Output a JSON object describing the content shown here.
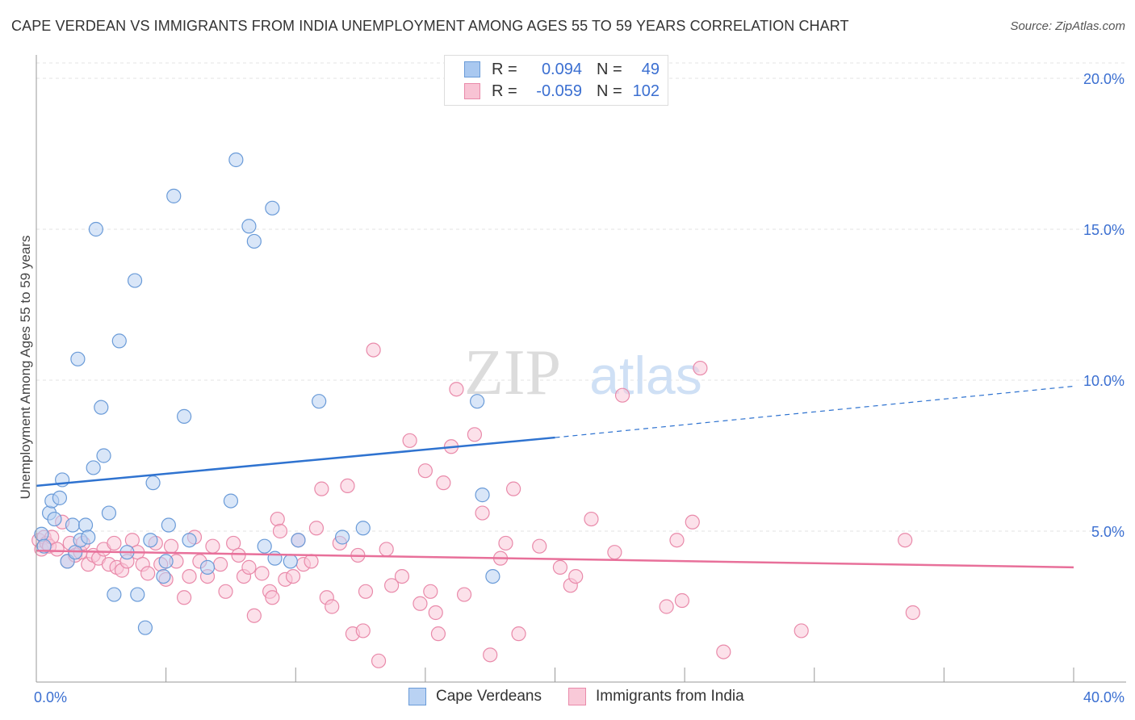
{
  "title": "CAPE VERDEAN VS IMMIGRANTS FROM INDIA UNEMPLOYMENT AMONG AGES 55 TO 59 YEARS CORRELATION CHART",
  "source": "Source: ZipAtlas.com",
  "watermark": {
    "zip": "ZIP",
    "atlas": "atlas"
  },
  "legend_top": [
    {
      "r_label": "R =",
      "r_value": "0.094",
      "n_label": "N =",
      "n_value": "49",
      "color": "#a9c8f0",
      "border": "#6a9bd8"
    },
    {
      "r_label": "R =",
      "r_value": "-0.059",
      "n_label": "N =",
      "n_value": "102",
      "color": "#f8c3d4",
      "border": "#e98aaa"
    }
  ],
  "chart_data": {
    "type": "scatter",
    "title": "CAPE VERDEAN VS IMMIGRANTS FROM INDIA UNEMPLOYMENT AMONG AGES 55 TO 59 YEARS CORRELATION CHART",
    "xlabel": "",
    "ylabel": "Unemployment Among Ages 55 to 59 years",
    "xlim": [
      0,
      40
    ],
    "ylim": [
      0,
      20
    ],
    "x_tick_labels": [
      "0.0%",
      "40.0%"
    ],
    "y_ticks": [
      5,
      10,
      15,
      20
    ],
    "y_tick_labels": [
      "5.0%",
      "10.0%",
      "15.0%",
      "20.0%"
    ],
    "grid": true,
    "legend": "bottom",
    "series": [
      {
        "name": "Cape Verdeans",
        "color": "#6a9bd8",
        "fill": "#b9d2f3",
        "trend": {
          "x0": 0,
          "y0": 6.5,
          "x1": 20,
          "y1": 8.1,
          "dash_to": 40,
          "dash_y": 9.8,
          "color": "#2f73d0"
        },
        "points": [
          [
            0.2,
            4.9
          ],
          [
            0.3,
            4.5
          ],
          [
            0.5,
            5.6
          ],
          [
            0.6,
            6.0
          ],
          [
            0.7,
            5.4
          ],
          [
            0.9,
            6.1
          ],
          [
            1.0,
            6.7
          ],
          [
            1.2,
            4.0
          ],
          [
            1.4,
            5.2
          ],
          [
            1.5,
            4.3
          ],
          [
            1.6,
            10.7
          ],
          [
            1.7,
            4.7
          ],
          [
            1.9,
            5.2
          ],
          [
            2.0,
            4.8
          ],
          [
            2.2,
            7.1
          ],
          [
            2.3,
            15.0
          ],
          [
            2.5,
            9.1
          ],
          [
            2.6,
            7.5
          ],
          [
            2.8,
            5.6
          ],
          [
            3.0,
            2.9
          ],
          [
            3.2,
            11.3
          ],
          [
            3.5,
            4.3
          ],
          [
            3.8,
            13.3
          ],
          [
            3.9,
            2.9
          ],
          [
            4.2,
            1.8
          ],
          [
            4.4,
            4.7
          ],
          [
            4.5,
            6.6
          ],
          [
            4.9,
            3.5
          ],
          [
            5.0,
            4.0
          ],
          [
            5.1,
            5.2
          ],
          [
            5.3,
            16.1
          ],
          [
            5.7,
            8.8
          ],
          [
            5.9,
            4.7
          ],
          [
            6.6,
            3.8
          ],
          [
            7.5,
            6.0
          ],
          [
            7.7,
            17.3
          ],
          [
            8.2,
            15.1
          ],
          [
            8.4,
            14.6
          ],
          [
            8.8,
            4.5
          ],
          [
            9.2,
            4.1
          ],
          [
            9.1,
            15.7
          ],
          [
            9.8,
            4.0
          ],
          [
            10.1,
            4.7
          ],
          [
            10.9,
            9.3
          ],
          [
            11.8,
            4.8
          ],
          [
            12.6,
            5.1
          ],
          [
            17.0,
            9.3
          ],
          [
            17.2,
            6.2
          ],
          [
            17.6,
            3.5
          ]
        ]
      },
      {
        "name": "Immigrants from India",
        "color": "#e98aaa",
        "fill": "#f9c9d8",
        "trend": {
          "x0": 0,
          "y0": 4.35,
          "x1": 40,
          "y1": 3.8,
          "color": "#e8709a"
        },
        "points": [
          [
            0.1,
            4.7
          ],
          [
            0.2,
            4.4
          ],
          [
            0.3,
            4.8
          ],
          [
            0.4,
            4.6
          ],
          [
            0.5,
            4.5
          ],
          [
            0.6,
            4.8
          ],
          [
            0.8,
            4.4
          ],
          [
            1.0,
            5.3
          ],
          [
            1.2,
            4.0
          ],
          [
            1.3,
            4.6
          ],
          [
            1.5,
            4.2
          ],
          [
            1.7,
            4.3
          ],
          [
            1.8,
            4.6
          ],
          [
            2.0,
            3.9
          ],
          [
            2.2,
            4.2
          ],
          [
            2.4,
            4.1
          ],
          [
            2.6,
            4.4
          ],
          [
            2.8,
            3.9
          ],
          [
            3.0,
            4.6
          ],
          [
            3.1,
            3.8
          ],
          [
            3.3,
            3.7
          ],
          [
            3.5,
            4.0
          ],
          [
            3.7,
            4.7
          ],
          [
            3.9,
            4.3
          ],
          [
            4.1,
            3.9
          ],
          [
            4.3,
            3.6
          ],
          [
            4.6,
            4.6
          ],
          [
            4.8,
            3.9
          ],
          [
            5.0,
            3.4
          ],
          [
            5.2,
            4.5
          ],
          [
            5.4,
            4.0
          ],
          [
            5.7,
            2.8
          ],
          [
            5.9,
            3.5
          ],
          [
            6.1,
            4.8
          ],
          [
            6.3,
            4.0
          ],
          [
            6.6,
            3.5
          ],
          [
            6.8,
            4.5
          ],
          [
            7.1,
            3.9
          ],
          [
            7.3,
            3.0
          ],
          [
            7.6,
            4.6
          ],
          [
            7.8,
            4.2
          ],
          [
            8.0,
            3.5
          ],
          [
            8.2,
            3.8
          ],
          [
            8.4,
            2.2
          ],
          [
            8.7,
            3.6
          ],
          [
            9.0,
            3.0
          ],
          [
            9.1,
            2.8
          ],
          [
            9.3,
            5.4
          ],
          [
            9.4,
            5.0
          ],
          [
            9.6,
            3.4
          ],
          [
            9.9,
            3.5
          ],
          [
            10.1,
            4.7
          ],
          [
            10.3,
            3.9
          ],
          [
            10.6,
            4.0
          ],
          [
            10.8,
            5.1
          ],
          [
            11.0,
            6.4
          ],
          [
            11.2,
            2.8
          ],
          [
            11.4,
            2.5
          ],
          [
            11.7,
            4.6
          ],
          [
            12.0,
            6.5
          ],
          [
            12.2,
            1.6
          ],
          [
            12.4,
            4.2
          ],
          [
            12.6,
            1.7
          ],
          [
            12.7,
            3.0
          ],
          [
            13.0,
            11.0
          ],
          [
            13.2,
            0.7
          ],
          [
            13.5,
            4.4
          ],
          [
            13.7,
            3.2
          ],
          [
            14.1,
            3.5
          ],
          [
            14.4,
            8.0
          ],
          [
            14.8,
            2.6
          ],
          [
            15.0,
            7.0
          ],
          [
            15.2,
            3.0
          ],
          [
            15.4,
            2.3
          ],
          [
            15.5,
            1.6
          ],
          [
            15.7,
            6.6
          ],
          [
            16.0,
            7.8
          ],
          [
            16.2,
            9.7
          ],
          [
            16.5,
            2.9
          ],
          [
            16.9,
            8.2
          ],
          [
            17.2,
            5.6
          ],
          [
            17.5,
            0.9
          ],
          [
            17.9,
            4.1
          ],
          [
            18.1,
            4.6
          ],
          [
            18.4,
            6.4
          ],
          [
            18.6,
            1.6
          ],
          [
            19.4,
            4.5
          ],
          [
            20.2,
            3.8
          ],
          [
            20.6,
            3.2
          ],
          [
            20.8,
            3.5
          ],
          [
            21.4,
            5.4
          ],
          [
            22.3,
            4.3
          ],
          [
            22.6,
            9.5
          ],
          [
            24.3,
            2.5
          ],
          [
            24.7,
            4.7
          ],
          [
            24.9,
            2.7
          ],
          [
            25.3,
            5.3
          ],
          [
            25.6,
            10.4
          ],
          [
            26.5,
            1.0
          ],
          [
            29.5,
            1.7
          ],
          [
            33.5,
            4.7
          ],
          [
            33.8,
            2.3
          ]
        ]
      }
    ]
  },
  "legend_bottom": [
    {
      "label": "Cape Verdeans",
      "color": "#b9d2f3",
      "border": "#6a9bd8"
    },
    {
      "label": "Immigrants from India",
      "color": "#f9c9d8",
      "border": "#e98aaa"
    }
  ]
}
